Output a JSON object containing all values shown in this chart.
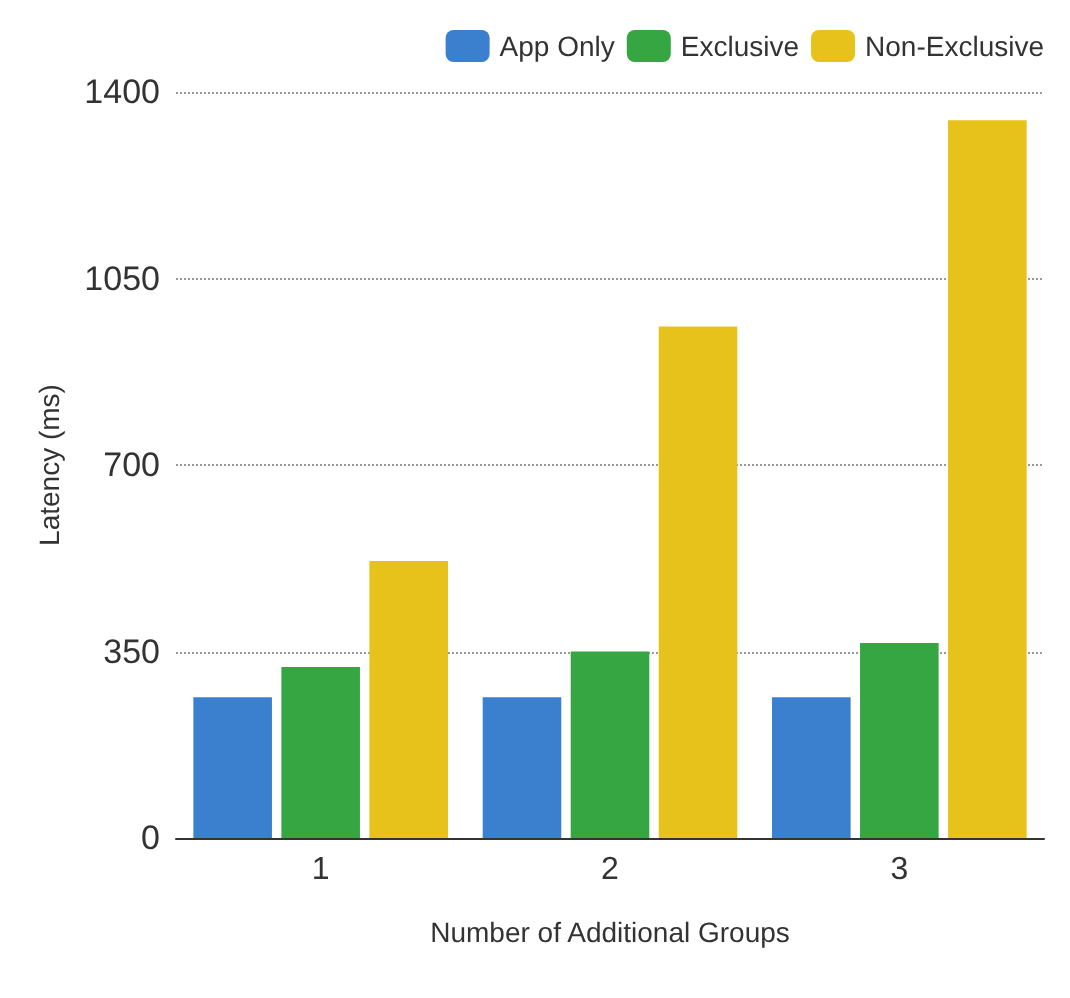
{
  "chart_data": {
    "type": "bar",
    "xlabel": "Number of Additional Groups",
    "ylabel": "Latency (ms)",
    "categories": [
      "1",
      "2",
      "3"
    ],
    "series": [
      {
        "name": "App Only",
        "color": "#3b7fcf",
        "values": [
          264,
          264,
          264
        ]
      },
      {
        "name": "Exclusive",
        "color": "#35a642",
        "values": [
          321,
          350,
          366
        ]
      },
      {
        "name": "Non-Exclusive",
        "color": "#e6c21a",
        "values": [
          520,
          960,
          1347
        ]
      }
    ],
    "ylim": [
      0,
      1400
    ],
    "yticks": [
      0,
      350,
      700,
      1050,
      1400
    ],
    "grid": "y",
    "legend": "top right"
  }
}
